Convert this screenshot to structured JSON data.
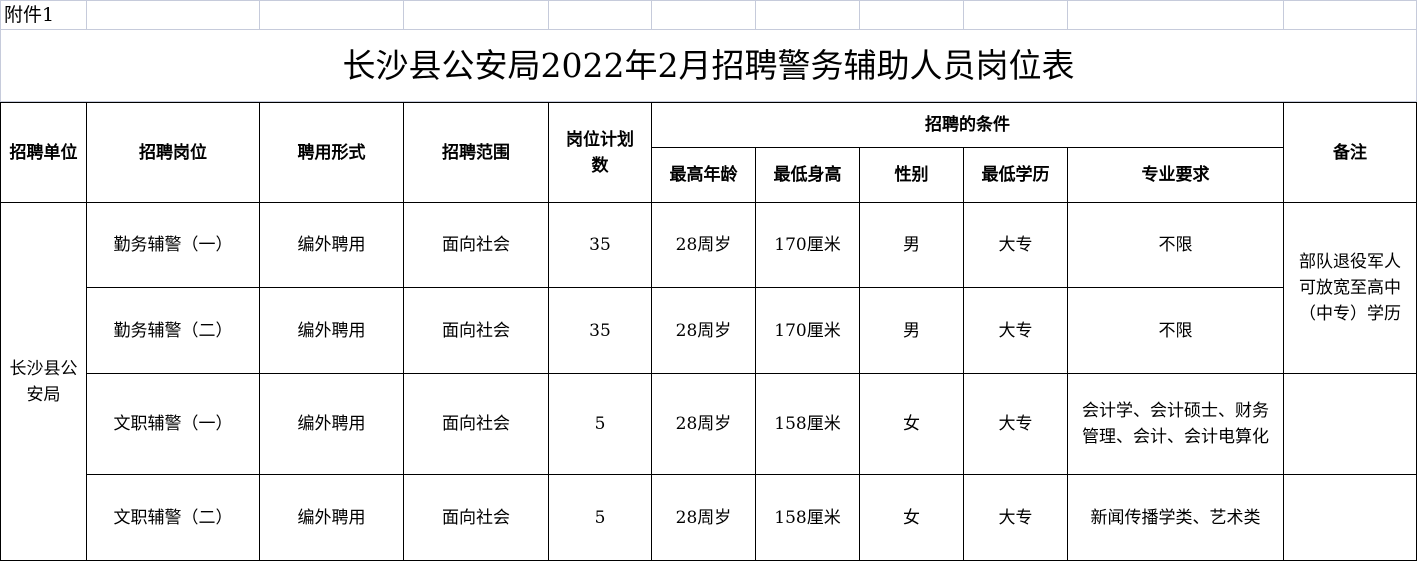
{
  "attachment_label": "附件1",
  "title": "长沙县公安局2022年2月招聘警务辅助人员岗位表",
  "headers": {
    "unit": "招聘单位",
    "position": "招聘岗位",
    "employment_form": "聘用形式",
    "scope": "招聘范围",
    "planned_count": "岗位计划数",
    "conditions": "招聘的条件",
    "max_age": "最高年龄",
    "min_height": "最低身高",
    "gender": "性别",
    "min_education": "最低学历",
    "major": "专业要求",
    "remarks": "备注"
  },
  "unit": "长沙县公安局",
  "remarks_first_two": "部队退役军人可放宽至高中（中专）学历",
  "rows": [
    {
      "position": "勤务辅警（一）",
      "form": "编外聘用",
      "scope": "面向社会",
      "count": "35",
      "age": "28周岁",
      "height": "170厘米",
      "gender": "男",
      "education": "大专",
      "major": "不限"
    },
    {
      "position": "勤务辅警（二）",
      "form": "编外聘用",
      "scope": "面向社会",
      "count": "35",
      "age": "28周岁",
      "height": "170厘米",
      "gender": "男",
      "education": "大专",
      "major": "不限"
    },
    {
      "position": "文职辅警（一）",
      "form": "编外聘用",
      "scope": "面向社会",
      "count": "5",
      "age": "28周岁",
      "height": "158厘米",
      "gender": "女",
      "education": "大专",
      "major": "会计学、会计硕士、财务管理、会计、会计电算化"
    },
    {
      "position": "文职辅警（二）",
      "form": "编外聘用",
      "scope": "面向社会",
      "count": "5",
      "age": "28周岁",
      "height": "158厘米",
      "gender": "女",
      "education": "大专",
      "major": "新闻传播学类、艺术类"
    }
  ]
}
